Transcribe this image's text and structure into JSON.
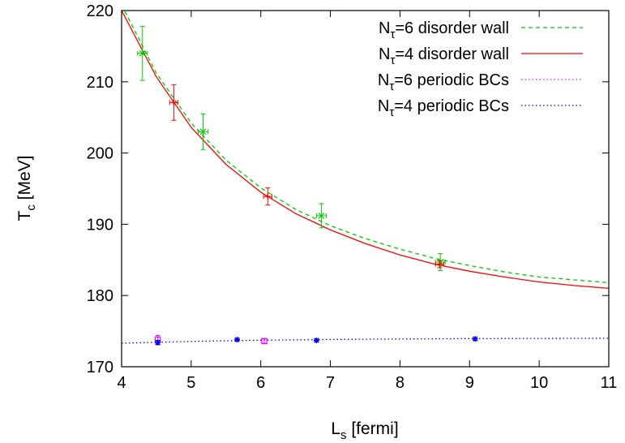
{
  "chart_data": {
    "type": "line",
    "title": "",
    "xlabel": {
      "main": "L",
      "sub": "s",
      "rest": " [fermi]"
    },
    "ylabel": {
      "main": "T",
      "sub": "c",
      "rest": " [MeV]"
    },
    "xlim": [
      4,
      11
    ],
    "ylim": [
      170,
      220
    ],
    "xticks": [
      4,
      5,
      6,
      7,
      8,
      9,
      10,
      11
    ],
    "yticks": [
      170,
      180,
      190,
      200,
      210,
      220
    ],
    "grid": false,
    "legend_position": "top-right",
    "series": [
      {
        "name": {
          "main": "N",
          "sub": "τ",
          "rest": "=6 disorder wall"
        },
        "color": "#00cc00",
        "line_style": "dashed",
        "marker": "x",
        "points": [
          {
            "x": 4.3,
            "y": 214,
            "xerr": 0.07,
            "yerr": 3.8
          },
          {
            "x": 5.17,
            "y": 203,
            "xerr": 0.07,
            "yerr": 2.5
          },
          {
            "x": 6.87,
            "y": 191.2,
            "xerr": 0.07,
            "yerr": 1.7
          },
          {
            "x": 8.58,
            "y": 184.7,
            "xerr": 0.07,
            "yerr": 1.2
          }
        ],
        "curve": [
          {
            "x": 4.0,
            "y": 220.8
          },
          {
            "x": 4.5,
            "y": 211.2
          },
          {
            "x": 5.0,
            "y": 204.2
          },
          {
            "x": 5.5,
            "y": 199.0
          },
          {
            "x": 6.0,
            "y": 195.1
          },
          {
            "x": 6.5,
            "y": 192.1
          },
          {
            "x": 7.0,
            "y": 189.8
          },
          {
            "x": 7.5,
            "y": 188.0
          },
          {
            "x": 8.0,
            "y": 186.5
          },
          {
            "x": 8.5,
            "y": 185.2
          },
          {
            "x": 9.0,
            "y": 184.2
          },
          {
            "x": 9.5,
            "y": 183.3
          },
          {
            "x": 10.0,
            "y": 182.6
          },
          {
            "x": 10.5,
            "y": 182.2
          },
          {
            "x": 11.0,
            "y": 181.8
          }
        ]
      },
      {
        "name": {
          "main": "N",
          "sub": "τ",
          "rest": "=4 disorder wall"
        },
        "color": "#ff0000",
        "line_style": "solid",
        "marker": "plus",
        "points": [
          {
            "x": 4.75,
            "y": 207.1,
            "xerr": 0.06,
            "yerr": 2.5
          },
          {
            "x": 6.1,
            "y": 193.9,
            "xerr": 0.06,
            "yerr": 1.2
          },
          {
            "x": 8.57,
            "y": 184.4,
            "xerr": 0.06,
            "yerr": 0.5
          }
        ],
        "curve": [
          {
            "x": 4.0,
            "y": 220.0
          },
          {
            "x": 4.5,
            "y": 210.7
          },
          {
            "x": 5.0,
            "y": 203.6
          },
          {
            "x": 5.5,
            "y": 198.4
          },
          {
            "x": 6.0,
            "y": 194.5
          },
          {
            "x": 6.5,
            "y": 191.5
          },
          {
            "x": 7.0,
            "y": 189.2
          },
          {
            "x": 7.5,
            "y": 187.3
          },
          {
            "x": 8.0,
            "y": 185.7
          },
          {
            "x": 8.5,
            "y": 184.4
          },
          {
            "x": 9.0,
            "y": 183.4
          },
          {
            "x": 9.5,
            "y": 182.6
          },
          {
            "x": 10.0,
            "y": 181.9
          },
          {
            "x": 10.5,
            "y": 181.4
          },
          {
            "x": 11.0,
            "y": 181.0
          }
        ]
      },
      {
        "name": {
          "main": "N",
          "sub": "τ",
          "rest": "=6  periodic BCs"
        },
        "color": "#ff00ff",
        "line_style": "dotted",
        "marker": "square",
        "points": [
          {
            "x": 4.52,
            "y": 173.8,
            "xerr": 0,
            "yerr": 0.6
          },
          {
            "x": 6.05,
            "y": 173.6,
            "xerr": 0,
            "yerr": 0.3
          }
        ],
        "curve": []
      },
      {
        "name": {
          "main": "N",
          "sub": "τ",
          "rest": "=4  periodic BCs"
        },
        "color": "#0000ee",
        "line_style": "dotted",
        "marker": "star",
        "points": [
          {
            "x": 4.52,
            "y": 173.4,
            "xerr": 0,
            "yerr": 0.3
          },
          {
            "x": 5.66,
            "y": 173.8,
            "xerr": 0,
            "yerr": 0.2
          },
          {
            "x": 6.8,
            "y": 173.7,
            "xerr": 0,
            "yerr": 0.2
          },
          {
            "x": 9.08,
            "y": 173.9,
            "xerr": 0,
            "yerr": 0.2
          }
        ],
        "curve": [
          {
            "x": 4.0,
            "y": 173.3
          },
          {
            "x": 5.0,
            "y": 173.55
          },
          {
            "x": 6.0,
            "y": 173.72
          },
          {
            "x": 7.0,
            "y": 173.83
          },
          {
            "x": 8.0,
            "y": 173.9
          },
          {
            "x": 9.0,
            "y": 173.95
          },
          {
            "x": 10.0,
            "y": 173.98
          },
          {
            "x": 11.0,
            "y": 174.0
          }
        ]
      }
    ]
  }
}
